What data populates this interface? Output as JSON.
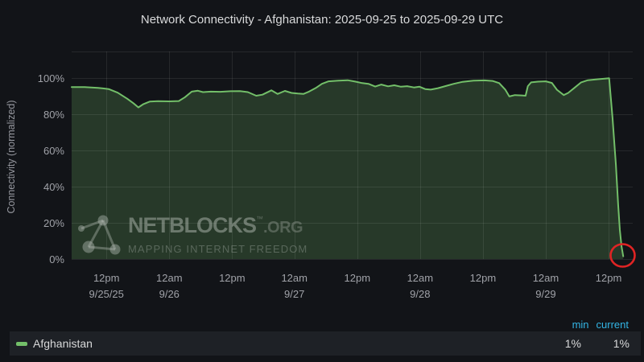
{
  "chart_data": {
    "type": "area",
    "title": "Network Connectivity - Afghanistan: 2025-09-25 to 2025-09-29 UTC",
    "ylabel": "Connectivity (normalized)",
    "ylim": [
      0,
      100
    ],
    "grid": true,
    "y_ticks": [
      {
        "pct": 100,
        "label": "100%"
      },
      {
        "pct": 80,
        "label": "80%"
      },
      {
        "pct": 60,
        "label": "60%"
      },
      {
        "pct": 40,
        "label": "40%"
      },
      {
        "pct": 20,
        "label": "20%"
      },
      {
        "pct": 0,
        "label": "0%"
      }
    ],
    "x_ticks": [
      {
        "f": 0.062,
        "time": "12pm",
        "date": "9/25/25"
      },
      {
        "f": 0.174,
        "time": "12am",
        "date": "9/26"
      },
      {
        "f": 0.286,
        "time": "12pm",
        "date": ""
      },
      {
        "f": 0.397,
        "time": "12am",
        "date": "9/27"
      },
      {
        "f": 0.509,
        "time": "12pm",
        "date": ""
      },
      {
        "f": 0.621,
        "time": "12am",
        "date": "9/28"
      },
      {
        "f": 0.733,
        "time": "12pm",
        "date": ""
      },
      {
        "f": 0.845,
        "time": "12am",
        "date": "9/29"
      },
      {
        "f": 0.957,
        "time": "12pm",
        "date": ""
      }
    ],
    "series": [
      {
        "name": "Afghanistan",
        "color": "#73bf69",
        "fill_opacity": 0.22,
        "min": "1%",
        "current": "1%",
        "points": [
          [
            0.0,
            95.0
          ],
          [
            0.023,
            95.0
          ],
          [
            0.047,
            94.6
          ],
          [
            0.066,
            93.9
          ],
          [
            0.082,
            91.9
          ],
          [
            0.099,
            88.6
          ],
          [
            0.11,
            86.1
          ],
          [
            0.119,
            83.8
          ],
          [
            0.128,
            85.6
          ],
          [
            0.139,
            87.0
          ],
          [
            0.154,
            87.2
          ],
          [
            0.174,
            87.1
          ],
          [
            0.191,
            87.3
          ],
          [
            0.202,
            89.4
          ],
          [
            0.214,
            92.5
          ],
          [
            0.225,
            93.0
          ],
          [
            0.234,
            92.2
          ],
          [
            0.248,
            92.5
          ],
          [
            0.265,
            92.4
          ],
          [
            0.283,
            92.7
          ],
          [
            0.3,
            92.8
          ],
          [
            0.314,
            92.2
          ],
          [
            0.329,
            90.2
          ],
          [
            0.34,
            90.8
          ],
          [
            0.356,
            93.2
          ],
          [
            0.367,
            91.2
          ],
          [
            0.38,
            92.9
          ],
          [
            0.392,
            91.8
          ],
          [
            0.403,
            91.4
          ],
          [
            0.413,
            91.2
          ],
          [
            0.423,
            92.5
          ],
          [
            0.435,
            94.5
          ],
          [
            0.446,
            96.8
          ],
          [
            0.458,
            98.2
          ],
          [
            0.475,
            98.6
          ],
          [
            0.492,
            98.8
          ],
          [
            0.506,
            98.0
          ],
          [
            0.518,
            97.2
          ],
          [
            0.529,
            96.8
          ],
          [
            0.541,
            95.3
          ],
          [
            0.552,
            96.4
          ],
          [
            0.564,
            95.4
          ],
          [
            0.575,
            96.0
          ],
          [
            0.587,
            95.2
          ],
          [
            0.598,
            95.5
          ],
          [
            0.61,
            94.8
          ],
          [
            0.62,
            95.2
          ],
          [
            0.63,
            93.9
          ],
          [
            0.64,
            93.6
          ],
          [
            0.653,
            94.4
          ],
          [
            0.667,
            95.6
          ],
          [
            0.681,
            96.8
          ],
          [
            0.697,
            97.9
          ],
          [
            0.716,
            98.6
          ],
          [
            0.736,
            98.7
          ],
          [
            0.75,
            98.4
          ],
          [
            0.762,
            97.2
          ],
          [
            0.773,
            93.5
          ],
          [
            0.78,
            89.8
          ],
          [
            0.79,
            90.6
          ],
          [
            0.802,
            90.4
          ],
          [
            0.809,
            90.2
          ],
          [
            0.813,
            95.5
          ],
          [
            0.819,
            97.6
          ],
          [
            0.831,
            98.0
          ],
          [
            0.845,
            98.2
          ],
          [
            0.856,
            97.3
          ],
          [
            0.865,
            93.5
          ],
          [
            0.877,
            90.6
          ],
          [
            0.885,
            91.8
          ],
          [
            0.897,
            94.8
          ],
          [
            0.908,
            97.6
          ],
          [
            0.92,
            98.8
          ],
          [
            0.934,
            99.2
          ],
          [
            0.948,
            99.6
          ],
          [
            0.958,
            99.9
          ],
          [
            0.964,
            78.0
          ],
          [
            0.97,
            52.0
          ],
          [
            0.974,
            30.0
          ],
          [
            0.977,
            16.0
          ],
          [
            0.98,
            7.0
          ],
          [
            0.983,
            1.5
          ]
        ]
      }
    ],
    "annotation_circle": {
      "f": 0.982,
      "pct": 2,
      "color": "#e02424"
    }
  },
  "watermark": {
    "brand": "NETBLOCKS",
    "tm": "™",
    "org": ".ORG",
    "tagline": "MAPPING INTERNET FREEDOM"
  },
  "legend": {
    "columns": [
      "min",
      "current"
    ],
    "series_label": "Afghanistan",
    "min_value": "1%",
    "current_value": "1%"
  },
  "colors": {
    "background": "#121418",
    "series_green": "#73bf69",
    "legend_header_blue": "#33b5e5",
    "annotation_red": "#e02424",
    "grid": "rgba(255,255,255,0.085)",
    "tick_text": "#a0a2a8",
    "title_text": "#d9dadb"
  }
}
